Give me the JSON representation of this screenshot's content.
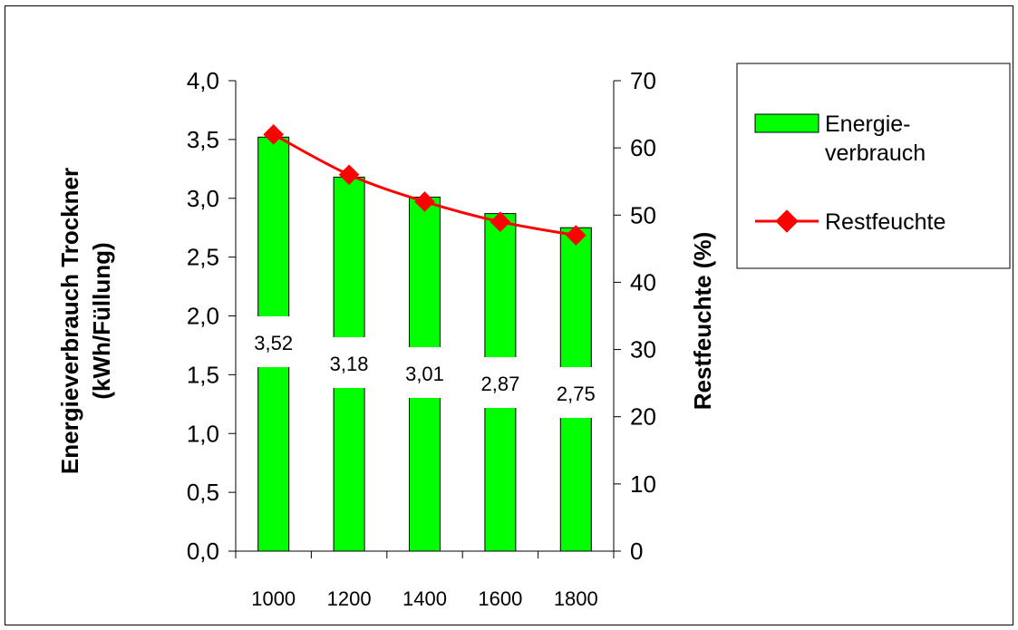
{
  "chart_data": {
    "type": "bar",
    "categories": [
      "1000",
      "1200",
      "1400",
      "1600",
      "1800"
    ],
    "series": [
      {
        "name": "Energieverbrauch",
        "type": "bar",
        "axis": "left",
        "values": [
          3.52,
          3.18,
          3.01,
          2.87,
          2.75
        ],
        "labels": [
          "3,52",
          "3,18",
          "3,01",
          "2,87",
          "2,75"
        ],
        "color": "#00ff00"
      },
      {
        "name": "Restfeuchte",
        "type": "line",
        "axis": "right",
        "values": [
          62,
          56,
          52,
          49,
          47
        ],
        "color": "#ff0000"
      }
    ],
    "y_left": {
      "label_line1": "Energieverbrauch Trockner",
      "label_line2": "(kWh/Füllung)",
      "ylim": [
        0,
        4
      ],
      "ticks": [
        0,
        0.5,
        1,
        1.5,
        2,
        2.5,
        3,
        3.5,
        4
      ],
      "tick_labels": [
        "0,0",
        "0,5",
        "1,0",
        "1,5",
        "2,0",
        "2,5",
        "3,0",
        "3,5",
        "4,0"
      ]
    },
    "y_right": {
      "label": "Restfeuchte (%)",
      "ylim": [
        0,
        70
      ],
      "ticks": [
        0,
        10,
        20,
        30,
        40,
        50,
        60,
        70
      ],
      "tick_labels": [
        "0",
        "10",
        "20",
        "30",
        "40",
        "50",
        "60",
        "70"
      ]
    },
    "legend": {
      "placement": "right",
      "items": [
        {
          "line1": "Energie-",
          "line2": "verbrauch"
        },
        {
          "line1": "Restfeuchte",
          "line2": ""
        }
      ]
    },
    "grid": false
  }
}
